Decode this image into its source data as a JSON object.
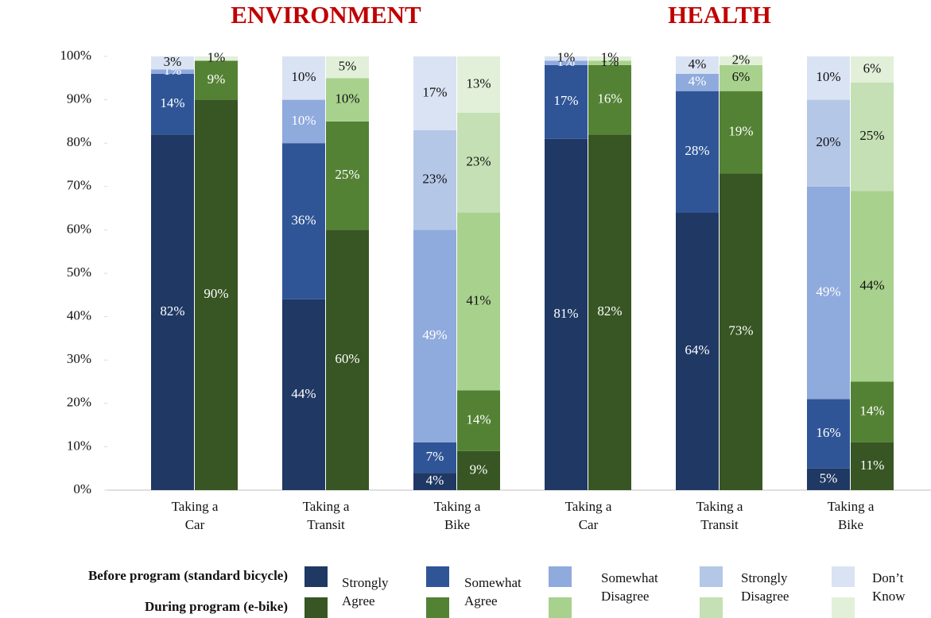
{
  "chart_data": {
    "type": "bar",
    "stacked": true,
    "ylim": [
      0,
      100
    ],
    "yticks": [
      {
        "value": 0,
        "label": "0%"
      },
      {
        "value": 10,
        "label": "10%"
      },
      {
        "value": 20,
        "label": "20%"
      },
      {
        "value": 30,
        "label": "30%"
      },
      {
        "value": 40,
        "label": "40%"
      },
      {
        "value": 50,
        "label": "50%"
      },
      {
        "value": 60,
        "label": "60%"
      },
      {
        "value": 70,
        "label": "70%"
      },
      {
        "value": 80,
        "label": "80%"
      },
      {
        "value": 90,
        "label": "90%"
      },
      {
        "value": 100,
        "label": "100%"
      }
    ],
    "responses": [
      "Strongly Agree",
      "Somewhat Agree",
      "Somewhat Disagree",
      "Strongly Disagree",
      "Don’t Know"
    ],
    "series": [
      {
        "name": "Before program (standard bicycle)",
        "colors": [
          "#1f3864",
          "#2f5597",
          "#8faadc",
          "#b4c7e7",
          "#dae3f3"
        ]
      },
      {
        "name": "During program (e-bike)",
        "colors": [
          "#375623",
          "#548235",
          "#a9d18e",
          "#c5e0b4",
          "#e2f0d9"
        ]
      }
    ],
    "panels": [
      {
        "title": "ENVIRONMENT",
        "categories": [
          "Taking a Car",
          "Taking a Transit",
          "Taking a Bike"
        ],
        "values": [
          [
            [
              82,
              14,
              1,
              0,
              3
            ],
            [
              44,
              36,
              10,
              0,
              10
            ],
            [
              4,
              7,
              49,
              23,
              17
            ]
          ],
          [
            [
              90,
              9,
              0,
              0,
              1
            ],
            [
              60,
              25,
              10,
              0,
              5
            ],
            [
              9,
              14,
              41,
              23,
              13
            ]
          ]
        ],
        "value_labels": [
          [
            [
              "82%",
              "14%",
              "1%",
              null,
              "3%"
            ],
            [
              "44%",
              "36%",
              "10%",
              null,
              "10%"
            ],
            [
              "4%",
              "7%",
              "49%",
              "23%",
              "17%"
            ]
          ],
          [
            [
              "90%",
              "9%",
              null,
              null,
              "1%"
            ],
            [
              "60%",
              "25%",
              "10%",
              null,
              "5%"
            ],
            [
              "9%",
              "14%",
              "41%",
              "23%",
              "13%"
            ]
          ]
        ]
      },
      {
        "title": "HEALTH",
        "categories": [
          "Taking a Car",
          "Taking a Transit",
          "Taking a Bike"
        ],
        "values": [
          [
            [
              81,
              17,
              1,
              0,
              1
            ],
            [
              64,
              28,
              4,
              0,
              4
            ],
            [
              5,
              16,
              49,
              20,
              10
            ]
          ],
          [
            [
              82,
              16,
              1,
              0,
              1
            ],
            [
              73,
              19,
              6,
              0,
              2
            ],
            [
              11,
              14,
              44,
              25,
              6
            ]
          ]
        ],
        "value_labels": [
          [
            [
              "81%",
              "17%",
              "1%",
              null,
              "1%"
            ],
            [
              "64%",
              "28%",
              "4%",
              null,
              "4%"
            ],
            [
              "5%",
              "16%",
              "49%",
              "20%",
              "10%"
            ]
          ],
          [
            [
              "82%",
              "16%",
              "1%",
              null,
              "1%"
            ],
            [
              "73%",
              "19%",
              "6%",
              null,
              "2%"
            ],
            [
              "11%",
              "14%",
              "44%",
              "25%",
              "6%"
            ]
          ]
        ]
      }
    ]
  }
}
